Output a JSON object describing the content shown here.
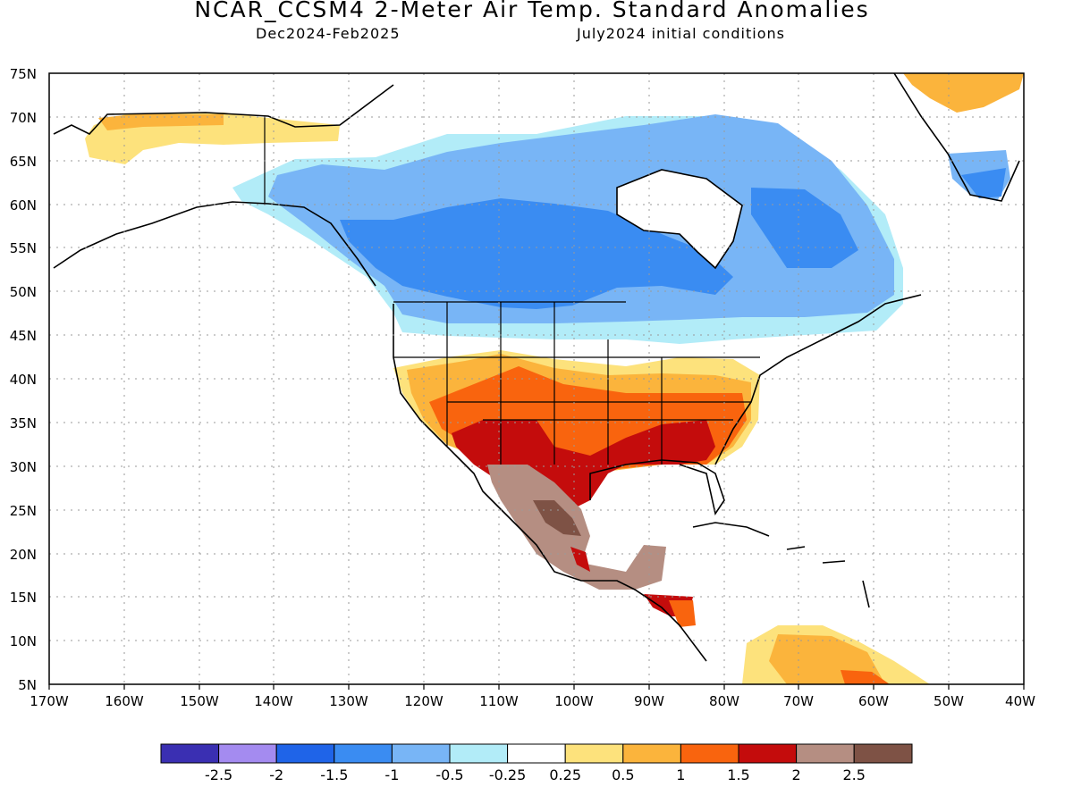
{
  "header": {
    "title": "NCAR_CCSM4 2-Meter Air Temp. Standard Anomalies",
    "period": "Dec2024-Feb2025",
    "init": "July2024 initial conditions"
  },
  "axes": {
    "lat_labels": [
      "75N",
      "70N",
      "65N",
      "60N",
      "55N",
      "50N",
      "45N",
      "40N",
      "35N",
      "30N",
      "25N",
      "20N",
      "15N",
      "10N",
      "5N"
    ],
    "lon_labels": [
      "170W",
      "160W",
      "150W",
      "140W",
      "130W",
      "120W",
      "110W",
      "100W",
      "90W",
      "80W",
      "70W",
      "60W",
      "50W",
      "40W"
    ]
  },
  "legend": {
    "colors": [
      "#3a2fb2",
      "#a48bf0",
      "#1f64e8",
      "#3a8cf2",
      "#78b5f6",
      "#b2ecf8",
      "#ffffff",
      "#fde27c",
      "#fbb43c",
      "#f9640e",
      "#c40c0c",
      "#b58e82",
      "#7e5245"
    ],
    "labels": [
      "-2.5",
      "-2",
      "-1.5",
      "-1",
      "-0.5",
      "-0.25",
      "0.25",
      "0.5",
      "1",
      "1.5",
      "2",
      "2.5"
    ]
  },
  "palette": {
    "ocean": "#ffffff",
    "coast": "#000000",
    "grid": "#9a9a9a"
  }
}
